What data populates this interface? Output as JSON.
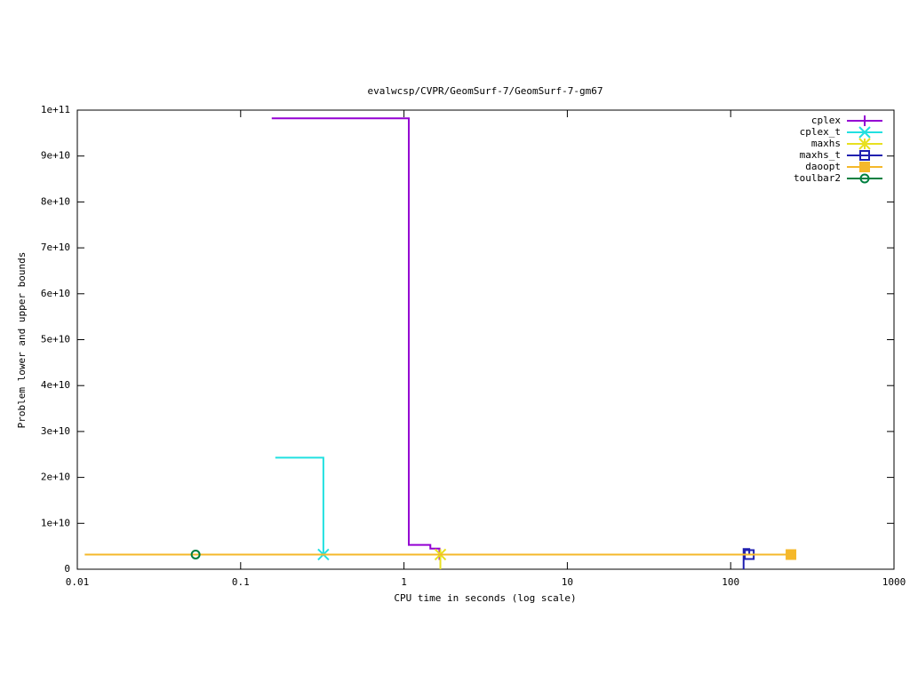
{
  "chart_data": {
    "type": "step",
    "title": "evalwcsp/CVPR/GeomSurf-7/GeomSurf-7-gm67",
    "x_label": "CPU time in seconds (log scale)",
    "y_label": "Problem lower and upper bounds",
    "x_log": true,
    "xlim": [
      0.01,
      1000
    ],
    "xticks": [
      0.01,
      0.1,
      1,
      10,
      100,
      1000
    ],
    "ylim": [
      0,
      100000000000
    ],
    "yticks": [
      0,
      {
        "value": 10000000000,
        "label": "1e+10"
      },
      {
        "value": 20000000000,
        "label": "2e+10"
      },
      {
        "value": 30000000000,
        "label": "3e+10"
      },
      {
        "value": 40000000000,
        "label": "4e+10"
      },
      {
        "value": 50000000000,
        "label": "5e+10"
      },
      {
        "value": 60000000000,
        "label": "6e+10"
      },
      {
        "value": 70000000000,
        "label": "7e+10"
      },
      {
        "value": 80000000000,
        "label": "8e+10"
      },
      {
        "value": 90000000000,
        "label": "9e+10"
      },
      {
        "value": 100000000000,
        "label": "1e+11"
      }
    ],
    "grid": false,
    "legend": "top-right",
    "series": [
      {
        "name": "cplex",
        "color": "#9400d3",
        "marker": "plus",
        "x": [
          0.155,
          1.07,
          1.45,
          1.65
        ],
        "values": [
          98200000000,
          5300000000,
          4500000000,
          3200000000
        ]
      },
      {
        "name": "cplex_t",
        "color": "#22e0e0",
        "marker": "cross",
        "x": [
          0.163,
          0.321
        ],
        "values": [
          24300000000,
          3200000000
        ]
      },
      {
        "name": "maxhs",
        "color": "#e8e020",
        "marker": "star",
        "x": [
          1.67,
          1.67
        ],
        "values": [
          0,
          3200000000
        ]
      },
      {
        "name": "maxhs_t",
        "color": "#2020b0",
        "marker": "square",
        "x": [
          120,
          120,
          130
        ],
        "values": [
          0,
          4400000000,
          3200000000
        ]
      },
      {
        "name": "daoopt",
        "color": "#f5b82a",
        "marker": "filled-square",
        "x": [
          0.0111,
          234
        ],
        "values": [
          3200000000,
          3200000000
        ]
      },
      {
        "name": "toulbar2",
        "color": "#008040",
        "marker": "circle",
        "x": [
          0.053
        ],
        "values": [
          3200000000
        ]
      }
    ]
  }
}
